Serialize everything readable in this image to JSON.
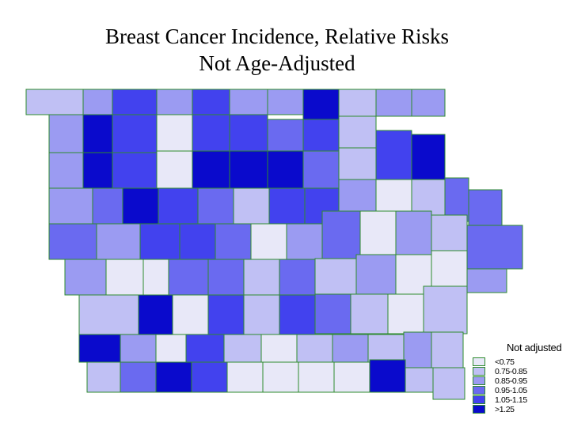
{
  "title_line1": "Breast Cancer Incidence, Relative Risks",
  "title_line2": "Not Age-Adjusted",
  "legend": {
    "title": "Not adjusted",
    "items": [
      {
        "label": "<0.75",
        "color": "#e8e8f8"
      },
      {
        "label": "0.75-0.85",
        "color": "#c0c0f4"
      },
      {
        "label": "0.85-0.95",
        "color": "#9b9bf2"
      },
      {
        "label": "0.95-1.05",
        "color": "#6a6af0"
      },
      {
        "label": "1.05-1.15",
        "color": "#4242ee"
      },
      {
        "label": ">1.25",
        "color": "#0a0acc"
      }
    ]
  },
  "colors": {
    "border": "#2e8b2e",
    "c1": "#e8e8f8",
    "c2": "#c0c0f4",
    "c3": "#9b9bf2",
    "c4": "#6a6af0",
    "c5": "#4242ee",
    "c6": "#0a0acc"
  }
}
